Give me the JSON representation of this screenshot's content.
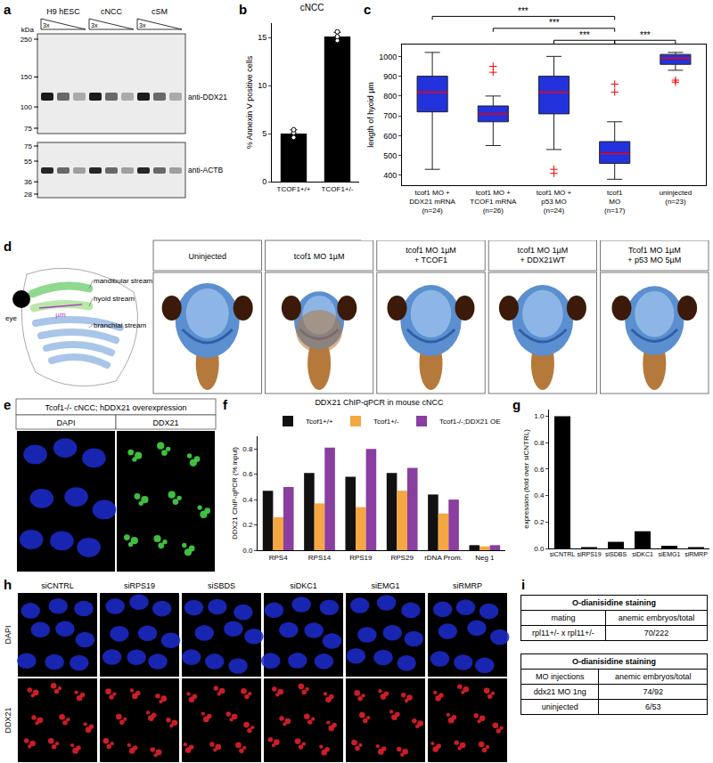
{
  "figure": {
    "panel_labels": [
      "a",
      "b",
      "c",
      "d",
      "e",
      "f",
      "g",
      "h",
      "i"
    ],
    "blot": {
      "lanes": [
        "H9 hESC",
        "cNCC",
        "cSM"
      ],
      "dilution": "3x",
      "unit": "kDa",
      "blots": [
        {
          "antibody": "anti-DDX21",
          "markers": [
            250,
            150,
            100,
            75
          ]
        },
        {
          "antibody": "anti-ACTB",
          "markers": [
            75,
            55,
            36,
            28
          ]
        }
      ]
    },
    "zebrafish": {
      "schematic": [
        "eye",
        "mandibular stream",
        "hyoid stream",
        "branchial stream"
      ],
      "measure": "µm",
      "conditions": [
        "Uninjected",
        "tcof1 MO 1µM",
        "tcof1 MO 1µM\n+ TCOF1",
        "tcof1 MO 1µM\n+ DDX21WT",
        "Tcof1 MO 1µM\n+ p53 MO 5µM"
      ]
    },
    "overexpression": {
      "title": "Tcof1-/- cNCC; hDDX21 overexpression",
      "channels": [
        "DAPI",
        "DDX21"
      ]
    },
    "knockdown_images": {
      "columns": [
        "siCNTRL",
        "siRPS19",
        "siSBDS",
        "siDKC1",
        "siEMG1",
        "siRMRP"
      ],
      "rows": [
        "DAPI",
        "DDX21"
      ]
    },
    "tables": [
      {
        "title": "O-dianisidine staining",
        "header": [
          "mating",
          "anemic embryos/total"
        ],
        "rows": [
          [
            "rpl11+/- x rpl11+/-",
            "70/222"
          ]
        ]
      },
      {
        "title": "O-dianisidine staining",
        "header": [
          "MO injections",
          "anemic embryos/total"
        ],
        "rows": [
          [
            "ddx21 MO 1ng",
            "74/92"
          ],
          [
            "uninjected",
            "6/53"
          ]
        ]
      }
    ]
  },
  "chart_data": [
    {
      "type": "bar",
      "title": "cNCC",
      "y_label": "% Annexin V positive cells",
      "categories": [
        "TCOF1+/+",
        "TCOF1+/-"
      ],
      "values": [
        5.0,
        15.1
      ],
      "errors": [
        0.4,
        0.45
      ],
      "points": [
        [
          4.6,
          5.1,
          5.4
        ],
        [
          14.7,
          15.1,
          15.6
        ]
      ],
      "color": "#000000",
      "ylim": [
        0,
        16.5
      ],
      "yticks": [
        0,
        5,
        10,
        15
      ],
      "grid": false
    },
    {
      "type": "box",
      "y_label": "length of hyoid µm",
      "categories": [
        "tcof1 MO +\nDDX21 mRNA\n(n=24)",
        "tcof1 MO +\nTCOF1 mRNA\n(n=26)",
        "tcof1 MO +\np53 MO\n(n=24)",
        "tcof1\nMO\n(n=17)",
        "uninjected\n(n=23)"
      ],
      "q1": [
        720,
        670,
        710,
        460,
        960
      ],
      "median": [
        820,
        710,
        820,
        510,
        990
      ],
      "q3": [
        900,
        750,
        900,
        570,
        1010
      ],
      "lowerfence": [
        430,
        550,
        530,
        380,
        930
      ],
      "upperfence": [
        1020,
        800,
        1000,
        670,
        1020
      ],
      "outliers": [
        [],
        [
          920,
          950
        ],
        [
          430,
          410
        ],
        [
          820,
          860
        ],
        [
          880,
          870
        ]
      ],
      "comparisons": [
        {
          "pair": [
            0,
            3
          ],
          "label": "***"
        },
        {
          "pair": [
            1,
            3
          ],
          "label": "***"
        },
        {
          "pair": [
            2,
            3
          ],
          "label": "***"
        },
        {
          "pair": [
            3,
            4
          ],
          "label": "***"
        }
      ],
      "color": "#2233dd",
      "ylim": [
        350,
        1060
      ],
      "yticks": [
        400,
        500,
        600,
        700,
        800,
        900,
        1000
      ],
      "grid": false
    },
    {
      "type": "bar",
      "title": "DDX21 ChIP-qPCR in mouse cNCC",
      "y_label": "DDX21 ChIP-qPCR (% input)",
      "categories": [
        "RPS4",
        "RPS14",
        "RPS19",
        "RPS29",
        "rDNA Prom.",
        "Neg 1"
      ],
      "series": [
        {
          "name": "Tcof1+/+",
          "color": "#111111",
          "values": [
            0.47,
            0.61,
            0.58,
            0.61,
            0.44,
            0.04
          ]
        },
        {
          "name": "Tcof1+/-",
          "color": "#f5a742",
          "values": [
            0.26,
            0.37,
            0.34,
            0.47,
            0.29,
            0.03
          ]
        },
        {
          "name": "Tcof1-/-;DDX21 OE",
          "color": "#8a3ea0",
          "values": [
            0.5,
            0.81,
            0.8,
            0.65,
            0.4,
            0.04
          ]
        }
      ],
      "ylim": [
        0,
        0.9
      ],
      "yticks": [
        {
          "value": 0,
          "label": "0.0"
        },
        0.2,
        0.4,
        0.6,
        0.8
      ],
      "legend": "top right",
      "grid": false
    },
    {
      "type": "bar",
      "y_label": "expression (fold over siCNTRL)",
      "categories": [
        "siCNTRL",
        "siRPS19",
        "siSDBS",
        "siDKC1",
        "siEMG1",
        "siRMRP"
      ],
      "values": [
        1.0,
        0.01,
        0.05,
        0.13,
        0.02,
        0.01
      ],
      "color": "#000000",
      "ylim": [
        0,
        1.05
      ],
      "yticks": [
        {
          "value": 0,
          "label": "0.0"
        },
        0.2,
        0.4,
        0.6,
        0.8,
        {
          "value": 1,
          "label": "1.0"
        }
      ],
      "grid": false
    }
  ]
}
